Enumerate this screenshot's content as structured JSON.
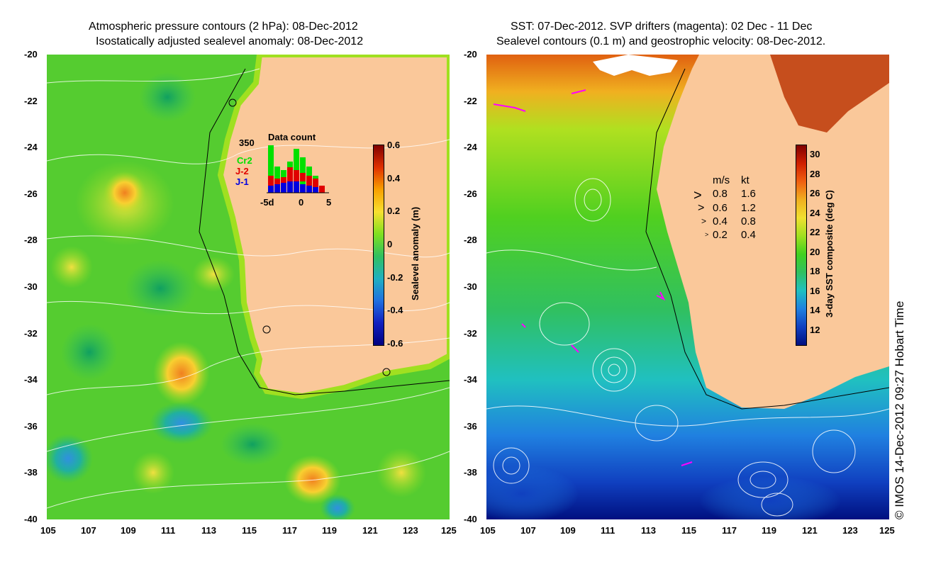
{
  "left": {
    "title_line1": "Atmospheric pressure contours (2 hPa): 08-Dec-2012",
    "title_line2": "Isostatically adjusted sealevel anomaly: 08-Dec-2012",
    "colorbar_label": "Sealevel anomaly (m)",
    "colorbar_ticks": [
      "0.6",
      "0.4",
      "0.2",
      "0",
      "-0.2",
      "-0.4",
      "-0.6"
    ],
    "inset": {
      "title": "Data count",
      "max_label": "350",
      "series": [
        {
          "name": "Cr2",
          "color": "#00e000"
        },
        {
          "name": "J-2",
          "color": "#e00000"
        },
        {
          "name": "J-1",
          "color": "#0000e0"
        }
      ],
      "xticks": [
        "-5d",
        "0",
        "5"
      ]
    }
  },
  "right": {
    "title_line1": "SST: 07-Dec-2012. SVP drifters (magenta): 02 Dec - 11 Dec",
    "title_line2": "Sealevel contours (0.1 m) and geostrophic velocity: 08-Dec-2012.",
    "colorbar_label": "3-day SST composite (deg C)",
    "colorbar_ticks": [
      "30",
      "28",
      "26",
      "24",
      "22",
      "20",
      "18",
      "16",
      "14",
      "12"
    ],
    "legend_header_ms": "m/s",
    "legend_header_kt": "kt",
    "legend_rows": [
      {
        "ms": "0.8",
        "kt": "1.6"
      },
      {
        "ms": "0.6",
        "kt": "1.2"
      },
      {
        "ms": "0.4",
        "kt": "0.8"
      },
      {
        "ms": "0.2",
        "kt": "0.4"
      }
    ]
  },
  "lat_ticks": [
    "-20",
    "-22",
    "-24",
    "-26",
    "-28",
    "-30",
    "-32",
    "-34",
    "-36",
    "-38",
    "-40"
  ],
  "lon_ticks": [
    "105",
    "107",
    "109",
    "111",
    "113",
    "115",
    "117",
    "119",
    "121",
    "123",
    "125"
  ],
  "copyright": "© IMOS 14-Dec-2012 09:27 Hobart Time",
  "colors": {
    "land": "#fac89a",
    "ocean_mid": "#4cd020",
    "contour": "#ffffff"
  }
}
